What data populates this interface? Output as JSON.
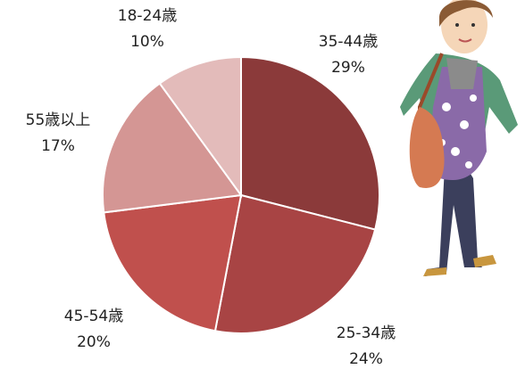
{
  "chart_data": {
    "type": "pie",
    "categories": [
      "35-44歳",
      "25-34歳",
      "45-54歳",
      "55歳以上",
      "18-24歳"
    ],
    "values": [
      29,
      24,
      20,
      17,
      10
    ],
    "value_labels": [
      "29%",
      "24%",
      "20%",
      "17%",
      "10%"
    ],
    "colors": [
      "#8b3a3a",
      "#a84444",
      "#c0504d",
      "#d49694",
      "#e3bbba"
    ]
  }
}
